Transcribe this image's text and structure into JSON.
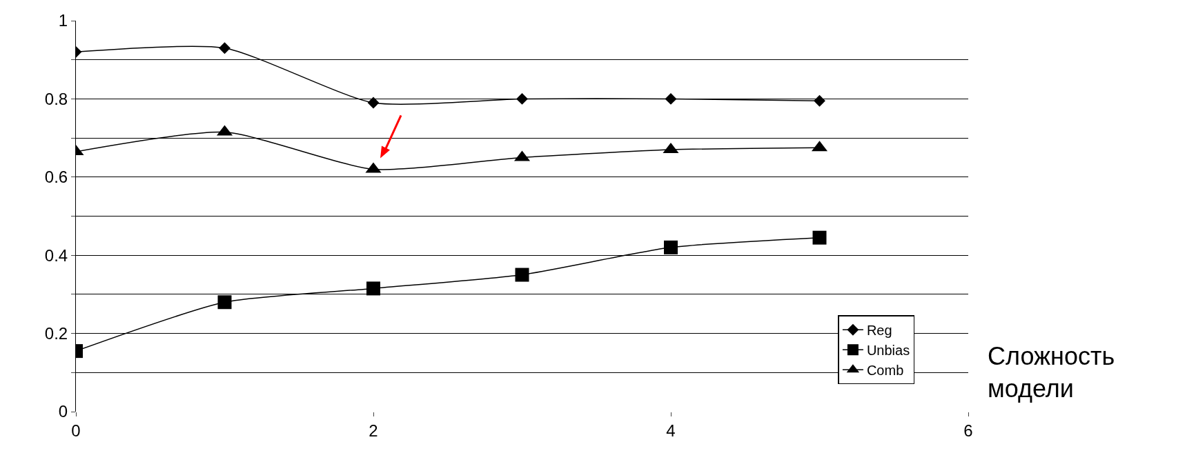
{
  "chart_data": {
    "type": "line",
    "xlabel": "Сложность модели",
    "x": [
      0,
      1,
      2,
      3,
      4,
      5
    ],
    "series": [
      {
        "name": "Reg",
        "color": "#000000",
        "marker": "diamond",
        "values": [
          0.92,
          0.93,
          0.79,
          0.8,
          0.8,
          0.795
        ]
      },
      {
        "name": "Unbias",
        "color": "#000000",
        "marker": "square",
        "values": [
          0.155,
          0.28,
          0.315,
          0.35,
          0.42,
          0.445
        ]
      },
      {
        "name": "Comb",
        "color": "#000000",
        "marker": "triangle",
        "values": [
          0.665,
          0.715,
          0.62,
          0.65,
          0.67,
          0.675
        ]
      }
    ],
    "xlim": [
      0,
      6
    ],
    "xticks": [
      0,
      2,
      4,
      6
    ],
    "ylim": [
      0,
      1
    ],
    "yticks": [
      0,
      {
        "value": 0.1,
        "label": null
      },
      {
        "value": 0.2,
        "label": "0.2"
      },
      {
        "value": 0.3,
        "label": null
      },
      {
        "value": 0.4,
        "label": "0.4"
      },
      {
        "value": 0.5,
        "label": null
      },
      {
        "value": 0.6,
        "label": "0.6"
      },
      {
        "value": 0.7,
        "label": null
      },
      {
        "value": 0.8,
        "label": "0.8"
      },
      {
        "value": 0.9,
        "label": null
      },
      1
    ],
    "grid": "y",
    "legend": "bottom right",
    "line_style": "solid"
  }
}
